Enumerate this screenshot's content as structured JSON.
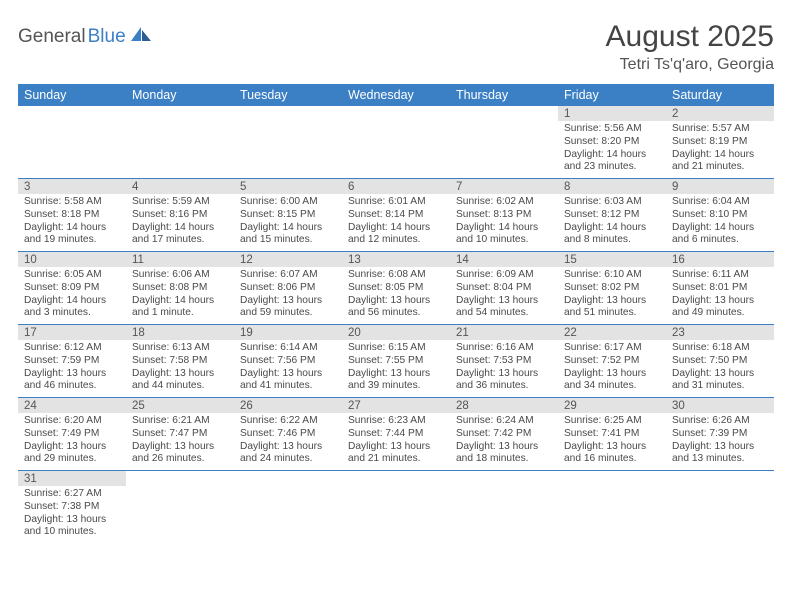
{
  "logo": {
    "textDark": "General",
    "textBlue": "Blue"
  },
  "title": "August 2025",
  "location": "Tetri Ts'q'aro, Georgia",
  "colors": {
    "headerBg": "#3b7fc4",
    "headerText": "#ffffff",
    "dayNumBg": "#e3e3e3",
    "cellBorder": "#3b7fc4",
    "bodyText": "#4a4a4a"
  },
  "dayHeaders": [
    "Sunday",
    "Monday",
    "Tuesday",
    "Wednesday",
    "Thursday",
    "Friday",
    "Saturday"
  ],
  "weeks": [
    [
      null,
      null,
      null,
      null,
      null,
      {
        "n": "1",
        "sunrise": "5:56 AM",
        "sunset": "8:20 PM",
        "daylight": "14 hours and 23 minutes."
      },
      {
        "n": "2",
        "sunrise": "5:57 AM",
        "sunset": "8:19 PM",
        "daylight": "14 hours and 21 minutes."
      }
    ],
    [
      {
        "n": "3",
        "sunrise": "5:58 AM",
        "sunset": "8:18 PM",
        "daylight": "14 hours and 19 minutes."
      },
      {
        "n": "4",
        "sunrise": "5:59 AM",
        "sunset": "8:16 PM",
        "daylight": "14 hours and 17 minutes."
      },
      {
        "n": "5",
        "sunrise": "6:00 AM",
        "sunset": "8:15 PM",
        "daylight": "14 hours and 15 minutes."
      },
      {
        "n": "6",
        "sunrise": "6:01 AM",
        "sunset": "8:14 PM",
        "daylight": "14 hours and 12 minutes."
      },
      {
        "n": "7",
        "sunrise": "6:02 AM",
        "sunset": "8:13 PM",
        "daylight": "14 hours and 10 minutes."
      },
      {
        "n": "8",
        "sunrise": "6:03 AM",
        "sunset": "8:12 PM",
        "daylight": "14 hours and 8 minutes."
      },
      {
        "n": "9",
        "sunrise": "6:04 AM",
        "sunset": "8:10 PM",
        "daylight": "14 hours and 6 minutes."
      }
    ],
    [
      {
        "n": "10",
        "sunrise": "6:05 AM",
        "sunset": "8:09 PM",
        "daylight": "14 hours and 3 minutes."
      },
      {
        "n": "11",
        "sunrise": "6:06 AM",
        "sunset": "8:08 PM",
        "daylight": "14 hours and 1 minute."
      },
      {
        "n": "12",
        "sunrise": "6:07 AM",
        "sunset": "8:06 PM",
        "daylight": "13 hours and 59 minutes."
      },
      {
        "n": "13",
        "sunrise": "6:08 AM",
        "sunset": "8:05 PM",
        "daylight": "13 hours and 56 minutes."
      },
      {
        "n": "14",
        "sunrise": "6:09 AM",
        "sunset": "8:04 PM",
        "daylight": "13 hours and 54 minutes."
      },
      {
        "n": "15",
        "sunrise": "6:10 AM",
        "sunset": "8:02 PM",
        "daylight": "13 hours and 51 minutes."
      },
      {
        "n": "16",
        "sunrise": "6:11 AM",
        "sunset": "8:01 PM",
        "daylight": "13 hours and 49 minutes."
      }
    ],
    [
      {
        "n": "17",
        "sunrise": "6:12 AM",
        "sunset": "7:59 PM",
        "daylight": "13 hours and 46 minutes."
      },
      {
        "n": "18",
        "sunrise": "6:13 AM",
        "sunset": "7:58 PM",
        "daylight": "13 hours and 44 minutes."
      },
      {
        "n": "19",
        "sunrise": "6:14 AM",
        "sunset": "7:56 PM",
        "daylight": "13 hours and 41 minutes."
      },
      {
        "n": "20",
        "sunrise": "6:15 AM",
        "sunset": "7:55 PM",
        "daylight": "13 hours and 39 minutes."
      },
      {
        "n": "21",
        "sunrise": "6:16 AM",
        "sunset": "7:53 PM",
        "daylight": "13 hours and 36 minutes."
      },
      {
        "n": "22",
        "sunrise": "6:17 AM",
        "sunset": "7:52 PM",
        "daylight": "13 hours and 34 minutes."
      },
      {
        "n": "23",
        "sunrise": "6:18 AM",
        "sunset": "7:50 PM",
        "daylight": "13 hours and 31 minutes."
      }
    ],
    [
      {
        "n": "24",
        "sunrise": "6:20 AM",
        "sunset": "7:49 PM",
        "daylight": "13 hours and 29 minutes."
      },
      {
        "n": "25",
        "sunrise": "6:21 AM",
        "sunset": "7:47 PM",
        "daylight": "13 hours and 26 minutes."
      },
      {
        "n": "26",
        "sunrise": "6:22 AM",
        "sunset": "7:46 PM",
        "daylight": "13 hours and 24 minutes."
      },
      {
        "n": "27",
        "sunrise": "6:23 AM",
        "sunset": "7:44 PM",
        "daylight": "13 hours and 21 minutes."
      },
      {
        "n": "28",
        "sunrise": "6:24 AM",
        "sunset": "7:42 PM",
        "daylight": "13 hours and 18 minutes."
      },
      {
        "n": "29",
        "sunrise": "6:25 AM",
        "sunset": "7:41 PM",
        "daylight": "13 hours and 16 minutes."
      },
      {
        "n": "30",
        "sunrise": "6:26 AM",
        "sunset": "7:39 PM",
        "daylight": "13 hours and 13 minutes."
      }
    ],
    [
      {
        "n": "31",
        "sunrise": "6:27 AM",
        "sunset": "7:38 PM",
        "daylight": "13 hours and 10 minutes."
      },
      null,
      null,
      null,
      null,
      null,
      null
    ]
  ],
  "labels": {
    "sunrise": "Sunrise: ",
    "sunset": "Sunset: ",
    "daylight": "Daylight: "
  }
}
